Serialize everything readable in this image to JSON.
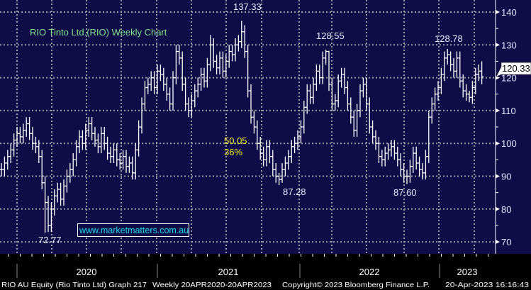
{
  "chart_data": {
    "type": "ohlc",
    "title": "RIO Tinto Ltd.(RIO) Weekly Chart",
    "frequency": "Weekly",
    "ylim": [
      66,
      143
    ],
    "yticks": [
      140,
      130,
      120,
      110,
      100,
      90,
      80,
      70
    ],
    "ytick_labels": [
      "140",
      "130",
      "120",
      "110",
      "100",
      "90",
      "80",
      "70"
    ],
    "x_labels": [
      "2020",
      "2021",
      "2022",
      "2023"
    ],
    "grid": true,
    "last_price": 120.33,
    "last_price_label": "120.33",
    "annotations": {
      "high_2021": "137.33",
      "high_2022": "128.55",
      "high_2023": "128.78",
      "low_2020": "72.77",
      "low_2021": "87.28",
      "low_2022": "87.60",
      "fall_amount": "50.05",
      "fall_percent": "36%"
    },
    "watermark": "www.marketmatters.com.au",
    "close": [
      92,
      94,
      96,
      98,
      101,
      103,
      102,
      104,
      106,
      103,
      100,
      99,
      96,
      88,
      82,
      75,
      80,
      84,
      86,
      83,
      87,
      90,
      92,
      95,
      99,
      102,
      100,
      104,
      106,
      103,
      101,
      99,
      103,
      100,
      97,
      96,
      98,
      95,
      94,
      96,
      93,
      94,
      91,
      98,
      105,
      112,
      117,
      118,
      120,
      117,
      122,
      121,
      118,
      115,
      112,
      120,
      128,
      126,
      118,
      112,
      110,
      113,
      116,
      118,
      121,
      119,
      124,
      130,
      125,
      123,
      126,
      122,
      125,
      128,
      127,
      130,
      131,
      134,
      128,
      116,
      108,
      105,
      100,
      97,
      95,
      99,
      96,
      92,
      90,
      89,
      92,
      94,
      96,
      99,
      100,
      102,
      105,
      111,
      116,
      114,
      118,
      122,
      120,
      126,
      128,
      118,
      112,
      113,
      119,
      121,
      117,
      112,
      108,
      104,
      110,
      116,
      118,
      112,
      105,
      102,
      100,
      96,
      95,
      97,
      98,
      99,
      97,
      95,
      92,
      90,
      90,
      93,
      97,
      94,
      92,
      91,
      96,
      108,
      112,
      115,
      117,
      121,
      126,
      127,
      124,
      122,
      126,
      119,
      116,
      115,
      114,
      117,
      121,
      122,
      120.33
    ],
    "high": [
      94,
      96,
      98,
      100,
      103,
      105,
      105,
      106,
      108,
      108,
      105,
      102,
      101,
      98,
      90,
      84,
      82,
      86,
      88,
      88,
      89,
      92,
      94,
      97,
      101,
      104,
      104,
      106,
      108,
      108,
      105,
      103,
      105,
      105,
      102,
      99,
      100,
      100,
      97,
      98,
      98,
      96,
      96,
      100,
      107,
      114,
      119,
      120,
      122,
      122,
      124,
      124,
      123,
      120,
      117,
      122,
      130,
      130,
      128,
      120,
      114,
      115,
      118,
      120,
      123,
      123,
      126,
      133,
      132,
      127,
      128,
      128,
      127,
      130,
      130,
      132,
      133,
      137.33,
      136,
      130,
      118,
      110,
      107,
      102,
      99,
      101,
      101,
      98,
      94,
      91,
      94,
      96,
      98,
      101,
      102,
      104,
      107,
      113,
      118,
      118,
      120,
      124,
      124,
      128,
      128.55,
      128.2,
      120,
      115,
      121,
      123,
      123,
      119,
      114,
      110,
      112,
      118,
      120,
      120,
      114,
      107,
      104,
      102,
      98,
      99,
      100,
      101,
      101,
      99,
      97,
      94,
      92,
      95,
      99,
      99,
      96,
      94,
      98,
      110,
      114,
      117,
      119,
      123,
      128,
      128.78,
      128,
      126,
      128,
      128,
      121,
      118,
      116,
      119,
      123,
      124,
      125
    ],
    "low": [
      90,
      90,
      92,
      94,
      96,
      99,
      100,
      100,
      102,
      101,
      98,
      97,
      94,
      86,
      72.77,
      73,
      73,
      78,
      82,
      81,
      81,
      85,
      88,
      90,
      93,
      97,
      98,
      98,
      102,
      101,
      99,
      97,
      97,
      98,
      95,
      94,
      94,
      93,
      92,
      92,
      91,
      91,
      89,
      89,
      96,
      103,
      110,
      115,
      116,
      115,
      115,
      119,
      116,
      113,
      110,
      110,
      118,
      124,
      116,
      110,
      108,
      108,
      111,
      114,
      116,
      117,
      117,
      122,
      123,
      121,
      121,
      120,
      120,
      123,
      125,
      125,
      128,
      129,
      126,
      114,
      106,
      103,
      98,
      95,
      93,
      93,
      94,
      90,
      88,
      87.28,
      88,
      90,
      92,
      94,
      97,
      98,
      100,
      103,
      109,
      112,
      112,
      116,
      118,
      118,
      124,
      116,
      110,
      110,
      111,
      117,
      115,
      110,
      106,
      102,
      102,
      108,
      114,
      110,
      103,
      100,
      98,
      94,
      93,
      93,
      95,
      96,
      95,
      93,
      90,
      88,
      87.6,
      88,
      91,
      92,
      90,
      89,
      89,
      94,
      106,
      110,
      113,
      115,
      119,
      124,
      122,
      120,
      120,
      117,
      114,
      113,
      112.5,
      112,
      115,
      119,
      118
    ]
  },
  "footer": {
    "security": "RIO AU Equity (Rio Tinto Ltd) Graph 217",
    "period": "Weekly 20APR2020-20APR2023",
    "copyright": "Copyright© 2023 Bloomberg Finance L.P.",
    "timestamp": "20-Apr-2023 16:16:43"
  },
  "colors": {
    "background": "#100c48",
    "bars": "#ffffff",
    "grid": "#9a9aa6",
    "title": "#7fe08a",
    "fall_annotation": "#f2f21a",
    "watermark": "#1ad8e6"
  }
}
